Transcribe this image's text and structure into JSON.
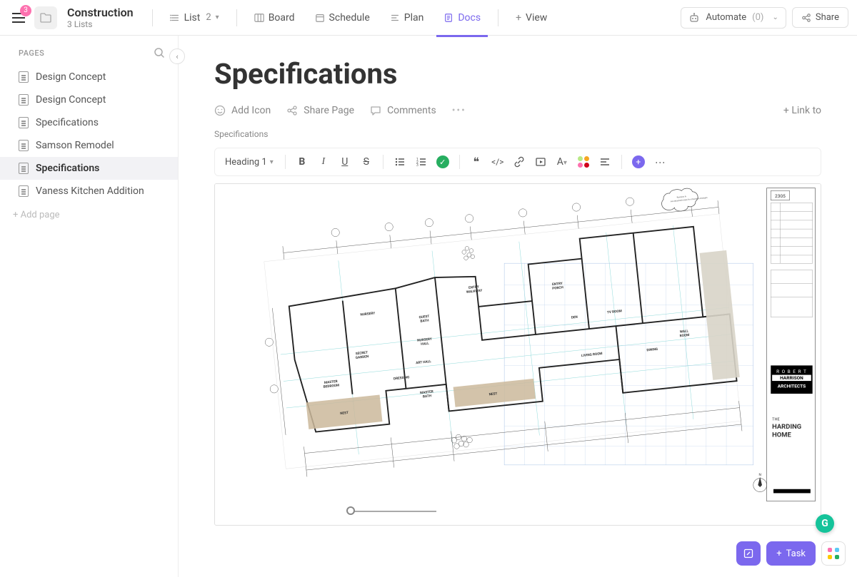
{
  "header": {
    "badge_count": "3",
    "project_title": "Construction",
    "project_subtitle": "3 Lists",
    "tabs": {
      "list": "List",
      "list_count": "2",
      "board": "Board",
      "schedule": "Schedule",
      "plan": "Plan",
      "docs": "Docs",
      "view": "View"
    },
    "automate_label": "Automate",
    "automate_count": "(0)",
    "share_label": "Share"
  },
  "sidebar": {
    "header": "PAGES",
    "pages": [
      {
        "label": "Design Concept"
      },
      {
        "label": "Design Concept"
      },
      {
        "label": "Specifications"
      },
      {
        "label": "Samson Remodel"
      },
      {
        "label": "Specifications"
      },
      {
        "label": "Vaness Kitchen Addition"
      }
    ],
    "active_index": 4,
    "add_page": "+ Add page"
  },
  "document": {
    "title": "Specifications",
    "actions": {
      "add_icon": "Add Icon",
      "share_page": "Share Page",
      "comments": "Comments",
      "link_to": "+ Link to"
    },
    "breadcrumb": "Specifications",
    "toolbar": {
      "heading": "Heading 1",
      "color_dots": [
        "#b8e986",
        "#f5a623",
        "#fd71af",
        "#d0021b"
      ]
    },
    "blueprint": {
      "architect_line1": "R O B E R T",
      "architect_line2": "HARRISON",
      "architect_line3": "ARCHITECTS",
      "project_line1": "THE",
      "project_line2": "HARDING",
      "project_line3": "HOME",
      "sheet_number": "2305",
      "rooms": [
        "NURSERY",
        "GUEST BATH",
        "ENTRY WALKWAY",
        "ENTRY PORCH",
        "NURSERY HALL",
        "SECRET GARDEN",
        "ART HALL",
        "TV ROOM",
        "DEN",
        "DRESSING",
        "MASTER BEDROOM",
        "MASTER BATH",
        "LIVING ROOM",
        "DINING",
        "WALL ROOM",
        "NEST",
        "NEST"
      ],
      "colors": {
        "line_primary": "#333333",
        "line_cyan": "#7fd4d4",
        "line_blue": "#b0c8e8",
        "fill_nest": "#cbb89b",
        "fill_deck": "#d8d4c8",
        "background": "#ffffff",
        "titleblock_bg": "#000000",
        "titleblock_text": "#ffffff"
      }
    }
  },
  "floating": {
    "task": "Task",
    "app_colors": [
      "#fd71af",
      "#5cc9f5",
      "#ffc800",
      "#27ae60"
    ]
  }
}
